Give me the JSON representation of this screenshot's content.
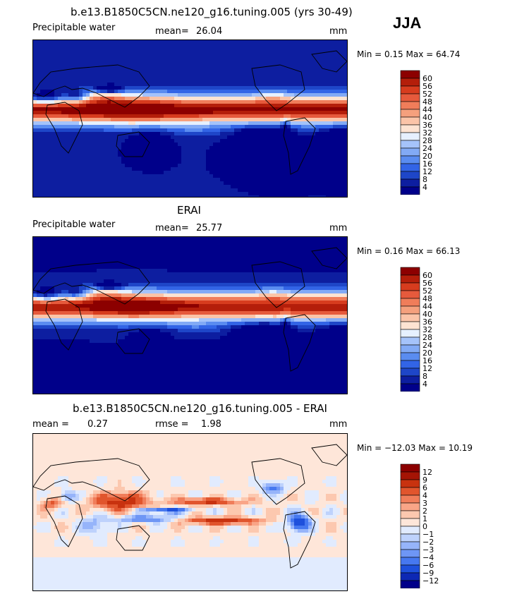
{
  "season": "JJA",
  "colors": {
    "absolute": [
      "#00008a",
      "#0d1ea0",
      "#1e46c8",
      "#3264e6",
      "#5a8cf0",
      "#82aaf5",
      "#a5c3fa",
      "#e6f0ff",
      "#fde3d2",
      "#fbc4a8",
      "#f5a07d",
      "#f07d5a",
      "#e65a3c",
      "#d73c1e",
      "#b41e0a",
      "#8c0000"
    ],
    "diff": [
      "#00008a",
      "#0d28b4",
      "#1e50dc",
      "#4678f0",
      "#6e96f5",
      "#96b4fa",
      "#bed2fc",
      "#e1ebfe",
      "#fee6d9",
      "#fcc8af",
      "#f9a587",
      "#f07d5a",
      "#e1552d",
      "#c8320f",
      "#a51405",
      "#8c0000"
    ]
  },
  "panels": [
    {
      "id": "model",
      "title": "b.e13.B1850C5CN.ne120_g16.tuning.005 (yrs 30-49)",
      "left_label": "Precipitable water",
      "stat1_label": "mean=",
      "stat1_value": "26.04",
      "unit": "mm",
      "minmax": "Min =    0.15 Max =   64.74"
    },
    {
      "id": "obs",
      "title": "ERAI",
      "left_label": "Precipitable water",
      "stat1_label": "mean=",
      "stat1_value": "25.77",
      "unit": "mm",
      "minmax": "Min =    0.16 Max =   66.13"
    },
    {
      "id": "diff",
      "title": "b.e13.B1850C5CN.ne120_g16.tuning.005 - ERAI",
      "stat1_label": "mean =",
      "stat1_value": "0.27",
      "stat2_label": "rmse =",
      "stat2_value": "1.98",
      "unit": "mm",
      "minmax": "Min = −12.03 Max =   10.19"
    }
  ],
  "chart_data": [
    {
      "type": "heatmap",
      "title": "b.e13.B1850C5CN.ne120_g16.tuning.005 (yrs 30-49)",
      "variable": "Precipitable water",
      "units": "mm",
      "season": "JJA",
      "mean": 26.04,
      "min": 0.15,
      "max": 64.74,
      "contour_levels": [
        4,
        8,
        12,
        16,
        20,
        24,
        28,
        32,
        36,
        40,
        44,
        48,
        52,
        56,
        60
      ],
      "colorbar_labels": [
        "60",
        "56",
        "52",
        "48",
        "44",
        "40",
        "36",
        "32",
        "28",
        "24",
        "20",
        "16",
        "12",
        "8",
        "4"
      ],
      "xlim": [
        0,
        360
      ],
      "ylim": [
        -90,
        90
      ]
    },
    {
      "type": "heatmap",
      "title": "ERAI",
      "variable": "Precipitable water",
      "units": "mm",
      "season": "JJA",
      "mean": 25.77,
      "min": 0.16,
      "max": 66.13,
      "contour_levels": [
        4,
        8,
        12,
        16,
        20,
        24,
        28,
        32,
        36,
        40,
        44,
        48,
        52,
        56,
        60
      ],
      "colorbar_labels": [
        "60",
        "56",
        "52",
        "48",
        "44",
        "40",
        "36",
        "32",
        "28",
        "24",
        "20",
        "16",
        "12",
        "8",
        "4"
      ],
      "xlim": [
        0,
        360
      ],
      "ylim": [
        -90,
        90
      ]
    },
    {
      "type": "heatmap",
      "title": "b.e13.B1850C5CN.ne120_g16.tuning.005 - ERAI",
      "units": "mm",
      "season": "JJA",
      "mean": 0.27,
      "rmse": 1.98,
      "min": -12.03,
      "max": 10.19,
      "contour_levels": [
        -12,
        -9,
        -6,
        -4,
        -3,
        -2,
        -1,
        0,
        1,
        2,
        3,
        4,
        6,
        9,
        12
      ],
      "colorbar_labels": [
        "12",
        "9",
        "6",
        "4",
        "3",
        "2",
        "1",
        "0",
        "−1",
        "−2",
        "−3",
        "−4",
        "−6",
        "−9",
        "−12"
      ],
      "xlim": [
        0,
        360
      ],
      "ylim": [
        -90,
        90
      ]
    }
  ]
}
